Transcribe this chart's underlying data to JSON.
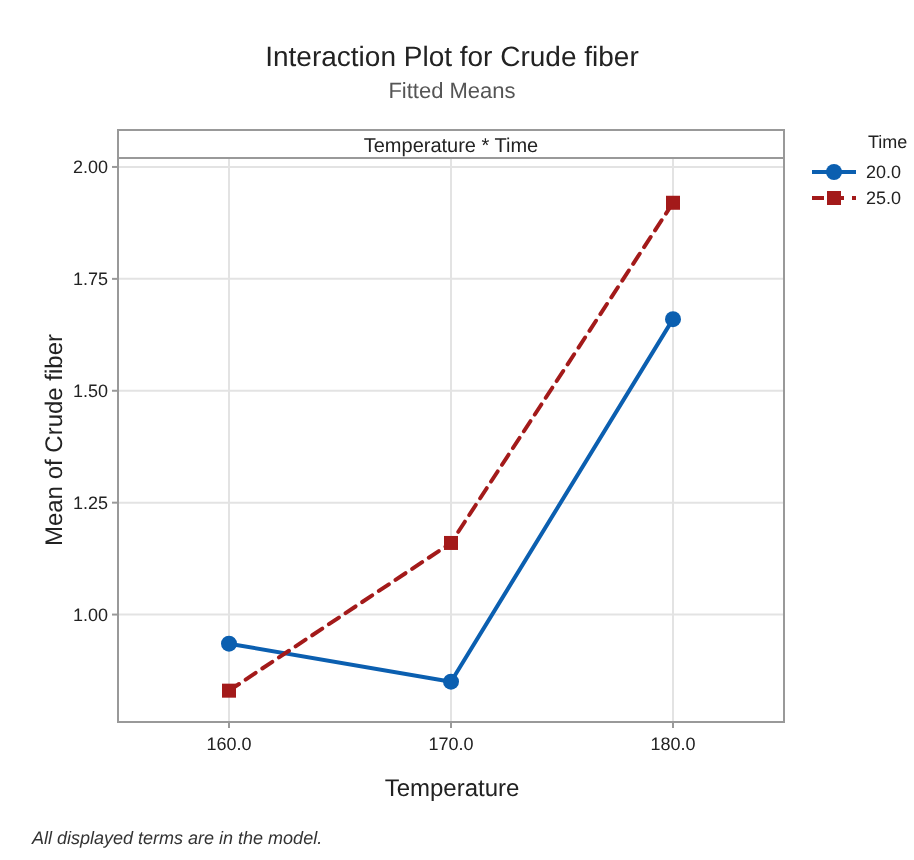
{
  "chart_data": {
    "type": "line",
    "title": "Interaction Plot for Crude fiber",
    "subtitle": "Fitted Means",
    "xlabel": "Temperature",
    "ylabel": "Mean of Crude fiber",
    "legend_title": "Time",
    "annotations": [
      "Temperature * Time",
      "All displayed terms are in the model."
    ],
    "x": [
      160,
      170,
      180
    ],
    "xlim": [
      155,
      185
    ],
    "xticks": [
      {
        "value": 160,
        "label": "160.0"
      },
      {
        "value": 170,
        "label": "170.0"
      },
      {
        "value": 180,
        "label": "180.0"
      }
    ],
    "ylim": [
      0.76,
      2.02
    ],
    "yticks": [
      {
        "value": 1,
        "label": "1.00"
      },
      {
        "value": 1.25,
        "label": "1.25"
      },
      {
        "value": 1.5,
        "label": "1.50"
      },
      {
        "value": 1.75,
        "label": "1.75"
      },
      {
        "value": 2,
        "label": "2.00"
      }
    ],
    "series": [
      {
        "name": "20.0",
        "color": "#0b5fb0",
        "values": [
          0.935,
          0.85,
          1.66
        ],
        "marker": "circle",
        "line_style": "solid"
      },
      {
        "name": "25.0",
        "color": "#a31a1a",
        "values": [
          0.83,
          1.16,
          1.92
        ],
        "marker": "square",
        "line_style": "dashed"
      }
    ],
    "grid": true,
    "legend": "top right"
  }
}
